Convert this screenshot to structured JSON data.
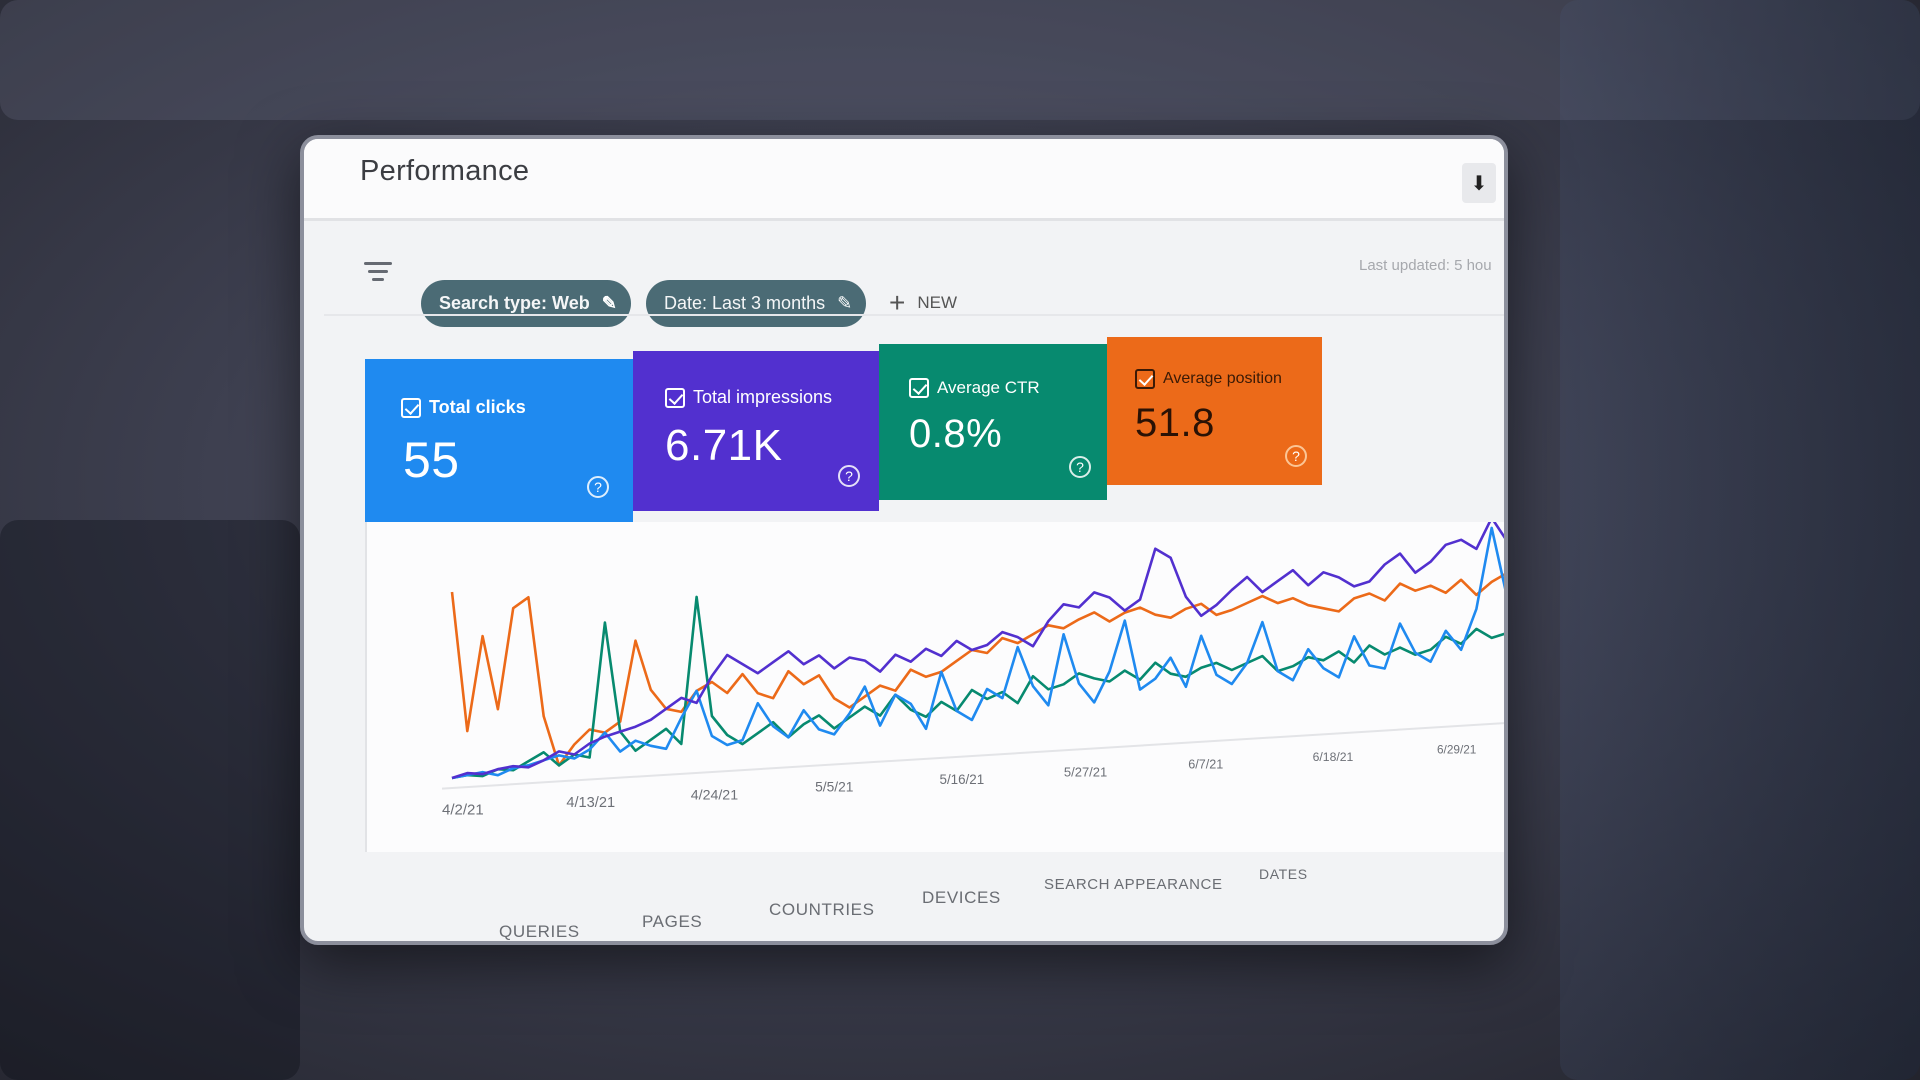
{
  "header": {
    "title": "Performance"
  },
  "filters": {
    "chips": [
      {
        "label": "Search type: Web"
      },
      {
        "label": "Date: Last 3 months"
      }
    ],
    "new_label": "NEW",
    "last_updated": "Last updated: 5 hou"
  },
  "metrics": {
    "total_clicks": {
      "label": "Total clicks",
      "value": "55",
      "color": "#1f8af0"
    },
    "total_impressions": {
      "label": "Total impressions",
      "value": "6.71K",
      "color": "#5230cf"
    },
    "average_ctr": {
      "label": "Average CTR",
      "value": "0.8%",
      "color": "#078a6f"
    },
    "average_position": {
      "label": "Average position",
      "value": "51.8",
      "color": "#ec6a19"
    }
  },
  "chart_data": {
    "type": "line",
    "x_ticks": [
      "4/2/21",
      "4/13/21",
      "4/24/21",
      "5/5/21",
      "5/16/21",
      "5/27/21",
      "6/7/21",
      "6/18/21",
      "6/29/21"
    ],
    "series": [
      {
        "color": "#ec6a19",
        "values": [
          0.95,
          0.25,
          0.72,
          0.35,
          0.85,
          0.9,
          0.3,
          0.05,
          0.15,
          0.22,
          0.2,
          0.25,
          0.65,
          0.4,
          0.3,
          0.28,
          0.38,
          0.42,
          0.36,
          0.45,
          0.35,
          0.32,
          0.45,
          0.38,
          0.42,
          0.3,
          0.25,
          0.3,
          0.35,
          0.32,
          0.42,
          0.38,
          0.4,
          0.45,
          0.5,
          0.48,
          0.55,
          0.52,
          0.56,
          0.6,
          0.58,
          0.62,
          0.65,
          0.6,
          0.64,
          0.66,
          0.62,
          0.6,
          0.64,
          0.66,
          0.6,
          0.62,
          0.65,
          0.68,
          0.64,
          0.66,
          0.62,
          0.6,
          0.58,
          0.64,
          0.66,
          0.62,
          0.7,
          0.66,
          0.68,
          0.64,
          0.7,
          0.62,
          0.68,
          0.72
        ]
      },
      {
        "color": "#078a6f",
        "values": [
          0.02,
          0.03,
          0.02,
          0.05,
          0.04,
          0.08,
          0.12,
          0.05,
          0.1,
          0.08,
          0.75,
          0.2,
          0.1,
          0.15,
          0.2,
          0.12,
          0.85,
          0.25,
          0.15,
          0.1,
          0.15,
          0.2,
          0.12,
          0.18,
          0.22,
          0.15,
          0.2,
          0.25,
          0.2,
          0.3,
          0.22,
          0.18,
          0.25,
          0.2,
          0.3,
          0.25,
          0.28,
          0.22,
          0.35,
          0.28,
          0.3,
          0.35,
          0.32,
          0.3,
          0.35,
          0.3,
          0.38,
          0.32,
          0.3,
          0.34,
          0.36,
          0.32,
          0.35,
          0.38,
          0.3,
          0.32,
          0.36,
          0.34,
          0.38,
          0.32,
          0.4,
          0.35,
          0.38,
          0.34,
          0.36,
          0.42,
          0.38,
          0.45,
          0.4,
          0.42
        ]
      },
      {
        "color": "#1f8af0",
        "values": [
          0.02,
          0.03,
          0.04,
          0.02,
          0.05,
          0.06,
          0.08,
          0.1,
          0.08,
          0.12,
          0.2,
          0.1,
          0.15,
          0.12,
          0.1,
          0.25,
          0.38,
          0.15,
          0.1,
          0.12,
          0.3,
          0.18,
          0.12,
          0.25,
          0.15,
          0.12,
          0.22,
          0.35,
          0.15,
          0.3,
          0.25,
          0.12,
          0.4,
          0.2,
          0.15,
          0.3,
          0.25,
          0.5,
          0.3,
          0.2,
          0.55,
          0.3,
          0.2,
          0.35,
          0.6,
          0.25,
          0.3,
          0.4,
          0.25,
          0.5,
          0.3,
          0.25,
          0.35,
          0.55,
          0.3,
          0.25,
          0.4,
          0.3,
          0.25,
          0.45,
          0.3,
          0.28,
          0.5,
          0.35,
          0.3,
          0.45,
          0.35,
          0.55,
          0.95,
          0.6
        ]
      },
      {
        "color": "#5230cf",
        "values": [
          0.02,
          0.04,
          0.03,
          0.05,
          0.06,
          0.05,
          0.08,
          0.12,
          0.1,
          0.15,
          0.18,
          0.2,
          0.22,
          0.25,
          0.3,
          0.35,
          0.32,
          0.45,
          0.55,
          0.5,
          0.45,
          0.5,
          0.55,
          0.48,
          0.52,
          0.45,
          0.5,
          0.48,
          0.42,
          0.5,
          0.46,
          0.52,
          0.48,
          0.55,
          0.5,
          0.52,
          0.58,
          0.55,
          0.5,
          0.62,
          0.7,
          0.68,
          0.75,
          0.72,
          0.65,
          0.7,
          0.95,
          0.9,
          0.7,
          0.6,
          0.65,
          0.72,
          0.78,
          0.7,
          0.75,
          0.8,
          0.72,
          0.78,
          0.75,
          0.7,
          0.72,
          0.8,
          0.85,
          0.75,
          0.8,
          0.88,
          0.9,
          0.85,
          1.0,
          0.88
        ]
      }
    ]
  },
  "tabs": [
    {
      "label": "QUERIES"
    },
    {
      "label": "PAGES"
    },
    {
      "label": "COUNTRIES"
    },
    {
      "label": "DEVICES"
    },
    {
      "label": "SEARCH APPEARANCE"
    },
    {
      "label": "DATES"
    }
  ]
}
